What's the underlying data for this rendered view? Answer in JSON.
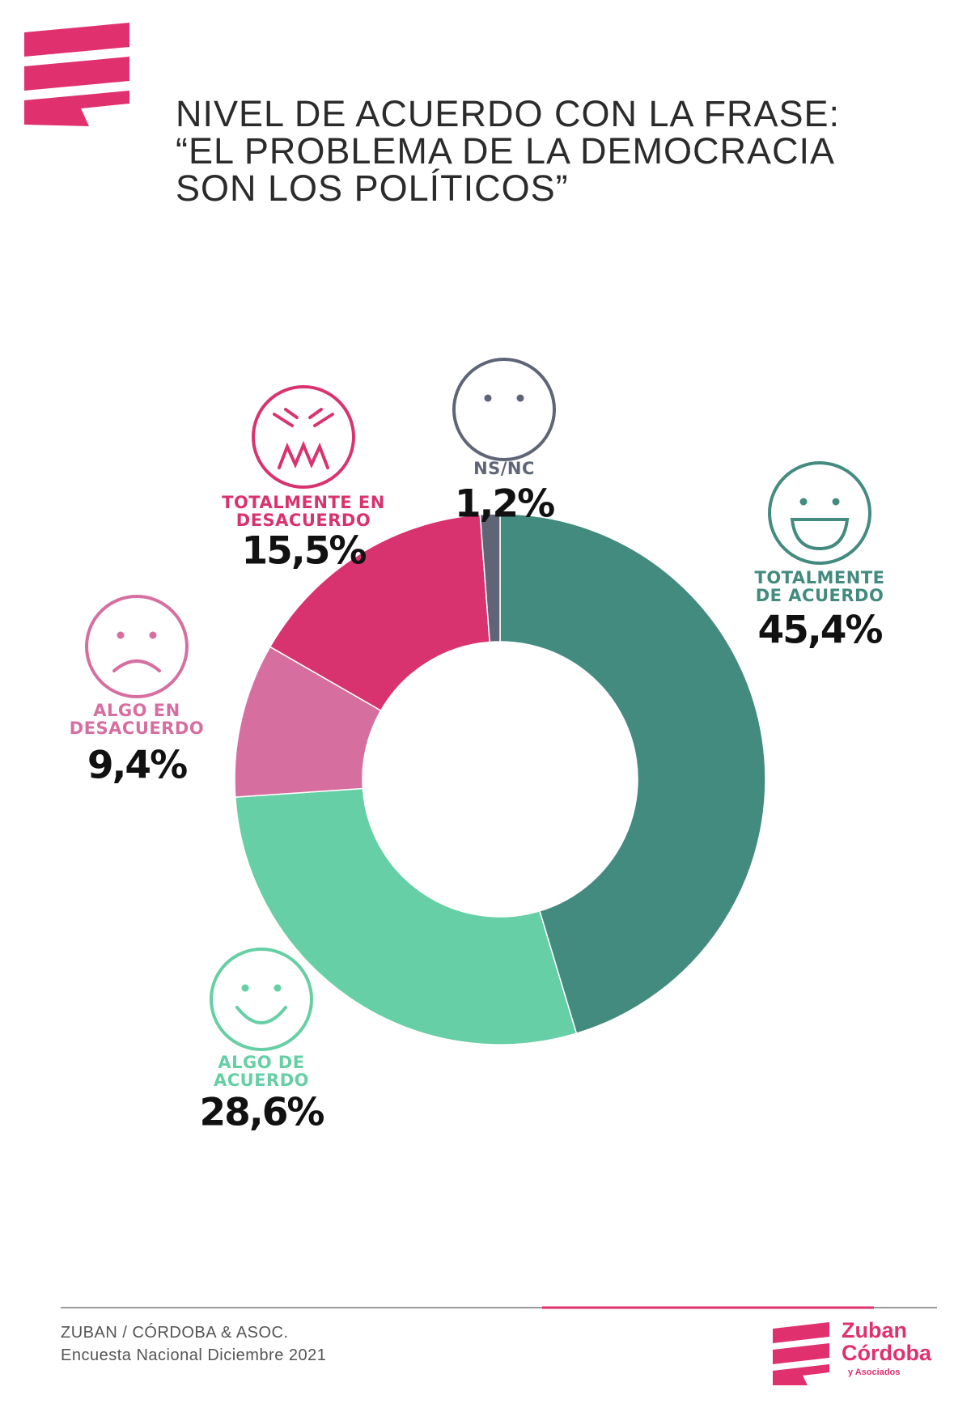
{
  "chart_data": {
    "type": "pie",
    "title": [
      "NIVEL DE ACUERDO CON LA FRASE:",
      "“EL PROBLEMA DE LA DEMOCRACIA",
      "SON LOS POLÍTICOS”"
    ],
    "categories": [
      "TOTALMENTE DE ACUERDO",
      "ALGO DE ACUERDO",
      "ALGO EN DESACUERDO",
      "TOTALMENTE EN DESACUERDO",
      "NS/NC"
    ],
    "values": [
      45.4,
      28.6,
      9.4,
      15.5,
      1.2
    ],
    "value_labels": [
      "45,4%",
      "28,6%",
      "9,4%",
      "15,5%",
      "1,2%"
    ],
    "colors": [
      "#438b7e",
      "#66cfa5",
      "#d66fa0",
      "#d9336f",
      "#5f6577"
    ]
  },
  "footer": {
    "source": "ZUBAN / CÓRDOBA & ASOC.",
    "survey": "Encuesta Nacional Diciembre 2021"
  },
  "logo": {
    "line1": "Zuban",
    "line2": "Córdoba",
    "line3": "y Asociados"
  }
}
